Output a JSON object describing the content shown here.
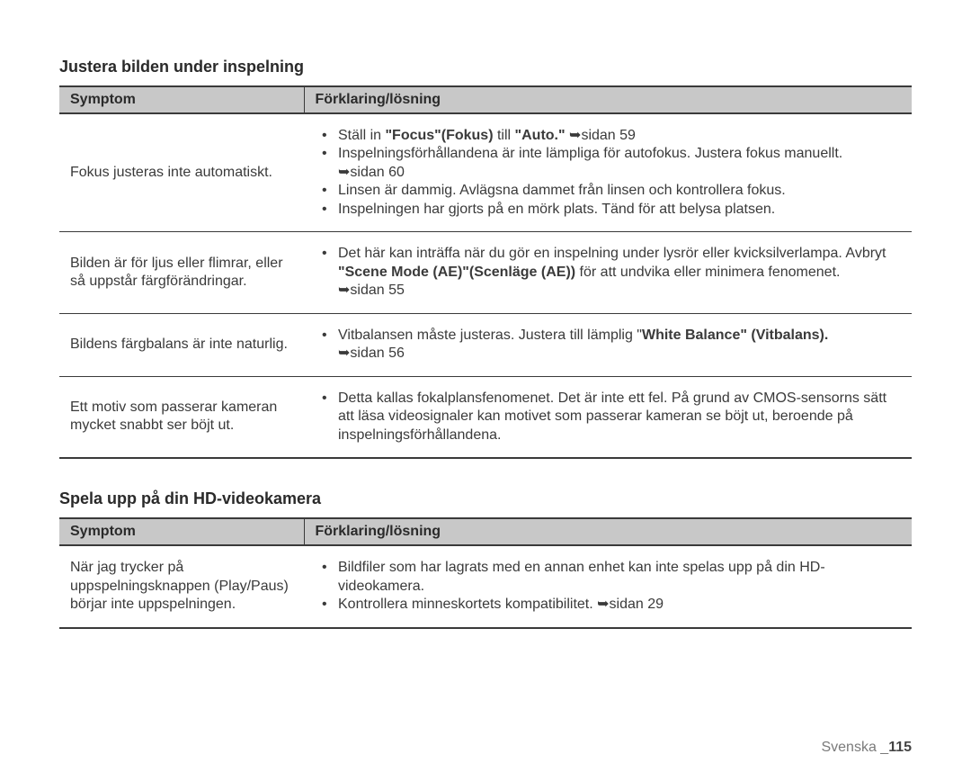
{
  "arrow": "➥",
  "section1": {
    "title": "Justera bilden under inspelning",
    "col1": "Symptom",
    "col2": "Förklaring/lösning",
    "rows": [
      {
        "symptom": "Fokus justeras inte automatiskt.",
        "b1a": "Ställ in ",
        "b1b": "\"Focus\"(Fokus)",
        "b1c": " till ",
        "b1d": "\"Auto.\" ",
        "b1e": "sidan 59",
        "b2a": "Inspelningsförhållandena är inte lämpliga för autofokus. Justera fokus manuellt. ",
        "b2b": "sidan 60",
        "b3": "Linsen är dammig. Avlägsna dammet från linsen och kontrollera fokus.",
        "b4": "Inspelningen har gjorts på en mörk plats. Tänd för att belysa platsen."
      },
      {
        "symptom": "Bilden är för ljus eller flimrar, eller så uppstår färgförändringar.",
        "b1a": "Det här kan inträffa när du gör en inspelning under lysrör eller kvicksilverlampa. Avbryt ",
        "b1b": "\"Scene Mode (AE)\"(Scenläge (AE))",
        "b1c": " för att undvika eller minimera fenomenet. ",
        "b1d": "sidan 55"
      },
      {
        "symptom": "Bildens färgbalans är inte naturlig.",
        "b1a": "Vitbalansen måste justeras. Justera till lämplig \"",
        "b1b": "White Balance\" (Vitbalans).",
        "b1c": " ",
        "b1d": "sidan 56"
      },
      {
        "symptom": "Ett motiv som passerar kameran mycket snabbt ser böjt ut.",
        "b1": "Detta kallas fokalplansfenomenet. Det är inte ett fel. På grund av CMOS-sensorns sätt att läsa videosignaler kan motivet som passerar kameran se böjt ut, beroende på inspelningsförhållandena."
      }
    ]
  },
  "section2": {
    "title": "Spela upp på din HD-videokamera",
    "col1": "Symptom",
    "col2": "Förklaring/lösning",
    "rows": [
      {
        "symptom": "När jag trycker på uppspelningsknappen (Play/Paus) börjar inte uppspelningen.",
        "b1": "Bildfiler som har lagrats med en annan enhet kan inte spelas upp på din HD-videokamera.",
        "b2a": "Kontrollera minneskortets kompatibilitet. ",
        "b2b": "sidan 29"
      }
    ]
  },
  "footer": {
    "lang": "Svenska ",
    "sep": "_",
    "page": "115"
  }
}
